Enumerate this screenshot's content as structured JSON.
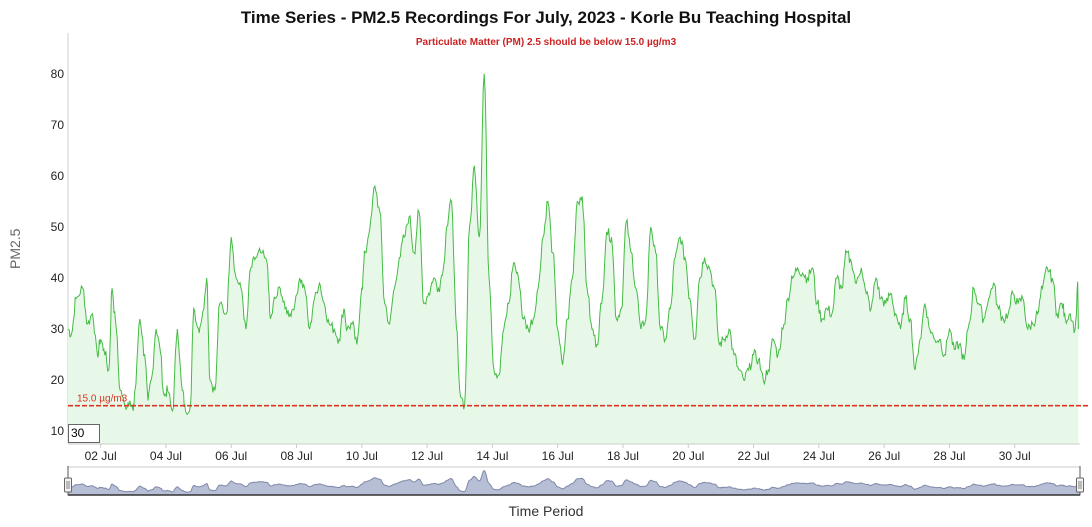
{
  "chart_data": {
    "type": "line",
    "title": "Time Series - PM2.5 Recordings For July, 2023 - Korle Bu Teaching Hospital",
    "subtitle": "Particulate Matter (PM) 2.5 should be below 15.0 µg/m3",
    "xlabel": "Time Period",
    "ylabel": "PM2.5",
    "ylim": [
      7.5,
      88
    ],
    "yticks": [
      10,
      20,
      30,
      40,
      50,
      60,
      70,
      80
    ],
    "xlim": [
      "2023-07-01T00:00",
      "2023-07-31T23:00"
    ],
    "xtick_labels": [
      "02 Jul",
      "04 Jul",
      "06 Jul",
      "08 Jul",
      "10 Jul",
      "12 Jul",
      "14 Jul",
      "16 Jul",
      "18 Jul",
      "20 Jul",
      "22 Jul",
      "24 Jul",
      "26 Jul",
      "28 Jul",
      "30 Jul"
    ],
    "grid": false,
    "threshold": {
      "value": 15.0,
      "label": "15.0 µg/m3",
      "color": "#dd3322"
    },
    "line_color": "#44bb44",
    "fill_color": "#e8f8e8",
    "rolling_period": "30",
    "series": [
      {
        "day": [
          1.0,
          1.1,
          1.25,
          1.45,
          1.6,
          1.75,
          1.9,
          2.0,
          2.1,
          2.25,
          2.35,
          2.45,
          2.6,
          2.75,
          2.9,
          3.0,
          3.05,
          3.2,
          3.35,
          3.45,
          3.55,
          3.7,
          3.8,
          3.95,
          4.05,
          4.2,
          4.35,
          4.5,
          4.6,
          4.75,
          4.85,
          5.0,
          5.1,
          5.25,
          5.35,
          5.5,
          5.65,
          5.85,
          6.0,
          6.15,
          6.3,
          6.45,
          6.6,
          6.75,
          6.9,
          7.1,
          7.2,
          7.35,
          7.5,
          7.65,
          7.8,
          7.95,
          8.1,
          8.25,
          8.4,
          8.55,
          8.7,
          8.85,
          9.0,
          9.15,
          9.3,
          9.45,
          9.55,
          9.7,
          9.85,
          10.0,
          10.1,
          10.25,
          10.4,
          10.55,
          10.7,
          10.85,
          11.0,
          11.15,
          11.3,
          11.45,
          11.6,
          11.75,
          11.9,
          12.05,
          12.2,
          12.35,
          12.5,
          12.6,
          12.75,
          12.9,
          13.0,
          13.15,
          13.3,
          13.45,
          13.6,
          13.75,
          13.9,
          14.05,
          14.2,
          14.35,
          14.5,
          14.65,
          14.8,
          14.95,
          15.1,
          15.25,
          15.4,
          15.55,
          15.7,
          15.85,
          16.0,
          16.15,
          16.3,
          16.45,
          16.6,
          16.75,
          16.9,
          17.05,
          17.2,
          17.35,
          17.5,
          17.65,
          17.8,
          17.95,
          18.1,
          18.25,
          18.4,
          18.55,
          18.7,
          18.85,
          19.0,
          19.15,
          19.3,
          19.45,
          19.6,
          19.75,
          19.9,
          20.05,
          20.2,
          20.35,
          20.5,
          20.65,
          20.8,
          20.95,
          21.1,
          21.25,
          21.4,
          21.55,
          21.7,
          21.85,
          22.0,
          22.15,
          22.3,
          22.45,
          22.6,
          22.75,
          22.9,
          23.05,
          23.2,
          23.35,
          23.5,
          23.65,
          23.8,
          23.95,
          24.1,
          24.25,
          24.4,
          24.55,
          24.7,
          24.85,
          25.0,
          25.15,
          25.3,
          25.45,
          25.6,
          25.75,
          25.9,
          26.05,
          26.2,
          26.35,
          26.5,
          26.65,
          26.8,
          26.95,
          27.1,
          27.25,
          27.4,
          27.55,
          27.7,
          27.85,
          28.0,
          28.15,
          28.3,
          28.45,
          28.6,
          28.75,
          28.9,
          29.05,
          29.2,
          29.35,
          29.5,
          29.65,
          29.8,
          29.95,
          30.1,
          30.25,
          30.4,
          30.55,
          30.7,
          30.85,
          31.0,
          31.15,
          31.3,
          31.45,
          31.55,
          31.7,
          31.85,
          31.95
        ],
        "values": [
          30,
          29,
          36,
          38,
          31,
          33,
          25,
          28,
          26,
          22,
          38,
          32,
          18,
          15,
          16,
          14,
          18,
          32,
          25,
          16,
          20,
          30,
          27,
          17,
          18,
          14,
          30,
          18,
          14,
          15,
          34,
          30,
          32,
          40,
          20,
          18,
          35,
          33,
          48,
          40,
          38,
          30,
          42,
          44,
          45,
          43,
          32,
          36,
          38,
          34,
          33,
          35,
          40,
          38,
          30,
          36,
          39,
          35,
          31,
          30,
          28,
          34,
          30,
          31,
          27,
          38,
          45,
          50,
          58,
          53,
          35,
          31,
          38,
          44,
          48,
          52,
          45,
          53,
          35,
          37,
          40,
          38,
          42,
          50,
          55,
          30,
          18,
          15,
          50,
          62,
          48,
          80,
          40,
          22,
          21,
          30,
          35,
          43,
          40,
          32,
          30,
          32,
          38,
          48,
          55,
          45,
          30,
          23,
          32,
          40,
          55,
          56,
          38,
          30,
          27,
          35,
          49,
          48,
          32,
          34,
          51,
          45,
          38,
          30,
          32,
          50,
          45,
          30,
          28,
          34,
          44,
          48,
          44,
          36,
          28,
          40,
          44,
          42,
          38,
          27,
          28,
          30,
          25,
          22,
          20,
          22,
          25,
          24,
          20,
          22,
          28,
          25,
          30,
          36,
          40,
          42,
          41,
          40,
          42,
          35,
          32,
          34,
          33,
          40,
          38,
          45,
          43,
          39,
          42,
          37,
          34,
          40,
          36,
          35,
          37,
          33,
          30,
          36,
          32,
          22,
          28,
          35,
          30,
          28,
          28,
          25,
          30,
          26,
          27,
          24,
          31,
          38,
          35,
          32,
          36,
          39,
          34,
          32,
          33,
          37,
          35,
          36,
          30,
          31,
          33,
          38,
          42,
          40,
          33,
          35,
          32,
          33,
          30,
          41,
          38,
          29,
          31,
          30
        ]
      }
    ],
    "navigator": {
      "xlabel": "Time Period",
      "fill_color": "#b7bfd6",
      "line_color": "#8088a8"
    }
  }
}
